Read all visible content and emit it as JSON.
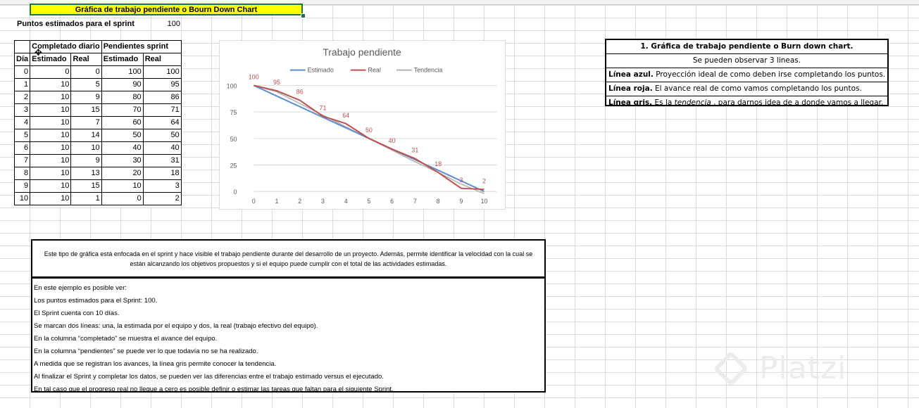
{
  "title": "Gráfica de trabajo pendiente o Bourn Down Chart",
  "points": {
    "label": "Puntos estimados para el sprint",
    "value": "100"
  },
  "table": {
    "group_headers": [
      "Completado diario",
      "Pendientes sprint"
    ],
    "col_headers": [
      "Día",
      "Estimado",
      "Real",
      "Estimado",
      "Real"
    ],
    "rows": [
      [
        "0",
        "0",
        "0",
        "100",
        "100"
      ],
      [
        "1",
        "10",
        "5",
        "90",
        "95"
      ],
      [
        "2",
        "10",
        "9",
        "80",
        "86"
      ],
      [
        "3",
        "10",
        "15",
        "70",
        "71"
      ],
      [
        "4",
        "10",
        "7",
        "60",
        "64"
      ],
      [
        "5",
        "10",
        "14",
        "50",
        "50"
      ],
      [
        "6",
        "10",
        "10",
        "40",
        "40"
      ],
      [
        "7",
        "10",
        "9",
        "30",
        "31"
      ],
      [
        "8",
        "10",
        "13",
        "20",
        "18"
      ],
      [
        "9",
        "10",
        "15",
        "10",
        "3"
      ],
      [
        "10",
        "10",
        "1",
        "0",
        "2"
      ]
    ]
  },
  "chart_data": {
    "type": "line",
    "title": "Trabajo pendiente",
    "x": [
      0,
      1,
      2,
      3,
      4,
      5,
      6,
      7,
      8,
      9,
      10
    ],
    "series": [
      {
        "name": "Estimado",
        "color": "#5b8ed0",
        "values": [
          100,
          90,
          80,
          70,
          60,
          50,
          40,
          30,
          20,
          10,
          0
        ]
      },
      {
        "name": "Real",
        "color": "#c0504d",
        "values": [
          100,
          95,
          86,
          71,
          64,
          50,
          40,
          31,
          18,
          3,
          2
        ],
        "data_labels": true
      },
      {
        "name": "Tendencia",
        "color": "#b3b3b3",
        "values": [
          100,
          94,
          83,
          72,
          61,
          50,
          39,
          28,
          18,
          7,
          -2
        ]
      }
    ],
    "yticks": [
      0,
      25,
      50,
      75,
      100
    ],
    "ylim": [
      0,
      110
    ],
    "legend": "top"
  },
  "info_box": {
    "title": "1. Gráfica de trabajo pendiente o Burn down chart.",
    "subtitle": "Se pueden observar 3 lineas.",
    "lines": [
      {
        "bold": "Línea azul.",
        "text": " Proyección ideal de como deben irse completando los puntos."
      },
      {
        "bold": "Línea roja.",
        "text": " El avance real de como vamos completando los puntos."
      },
      {
        "bold": "Línea gris.",
        "text": " Es la ",
        "italic": "tendencia",
        "after": " , para darnos idea de a donde vamos a llegar."
      }
    ]
  },
  "description": "Este tipo de gráfica está enfocada en el sprint y hace visible el trabajo pendiente durante del desarrollo de un proyecto. Además, permite identificar la velocidad con la cual se están alcanzando los objetivos propuestos y si el equipo puede cumplir con el total de las actividades estimadas.",
  "example_lines": [
    " En este ejemplo es posible ver:",
    "Los puntos estimados para el Sprint: 100.",
    "El Sprint cuenta con 10 días.",
    "Se marcan dos líneas: una, la estimada por el equipo y dos, la real (trabajo efectivo del equipo).",
    "En la columna “completado” se muestra el avance del equipo.",
    "En la columna “pendientes” se puede ver lo que todavía no se ha realizado.",
    "A medida que se registran los avances, la línea gris permite conocer la tendencia.",
    "Al finalizar el Sprint y completar los datos, se pueden ver las diferencias entre el trabajo estimado versus el ejecutado.",
    "En tal caso que el progreso real no llegue a cero es posible definir o estimar las tareas que faltan para el siguiente Sprint."
  ],
  "watermark": "Platzi"
}
